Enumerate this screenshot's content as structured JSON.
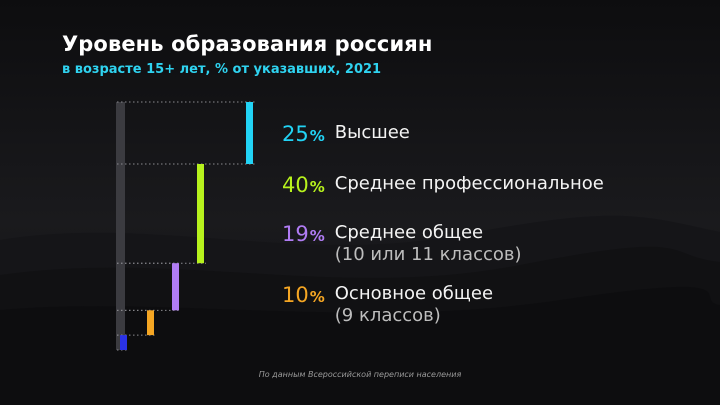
{
  "title": "Уровень образования россиян",
  "subtitle": "в возрасте 15+ лет, % от указавших, 2021",
  "source": "По данным Всероссийской переписи населения",
  "chart_data": {
    "type": "bar",
    "orientation": "stacked-waterfall",
    "unit": "%",
    "series": [
      {
        "value": "25",
        "unit": "%",
        "label": "Высшее",
        "sublabel": "",
        "color": "#22d3f5"
      },
      {
        "value": "40",
        "unit": "%",
        "label": "Среднее профессиональное",
        "sublabel": "",
        "color": "#b7f21d"
      },
      {
        "value": "19",
        "unit": "%",
        "label": "Среднее общее",
        "sublabel": "(10 или 11 классов)",
        "color": "#b07cf4"
      },
      {
        "value": "10",
        "unit": "%",
        "label": "Основное общее",
        "sublabel": "(9 классов)",
        "color": "#f5a623"
      },
      {
        "value": "6",
        "unit": "",
        "label": "",
        "sublabel": "",
        "color": "#2a32e8"
      }
    ]
  }
}
